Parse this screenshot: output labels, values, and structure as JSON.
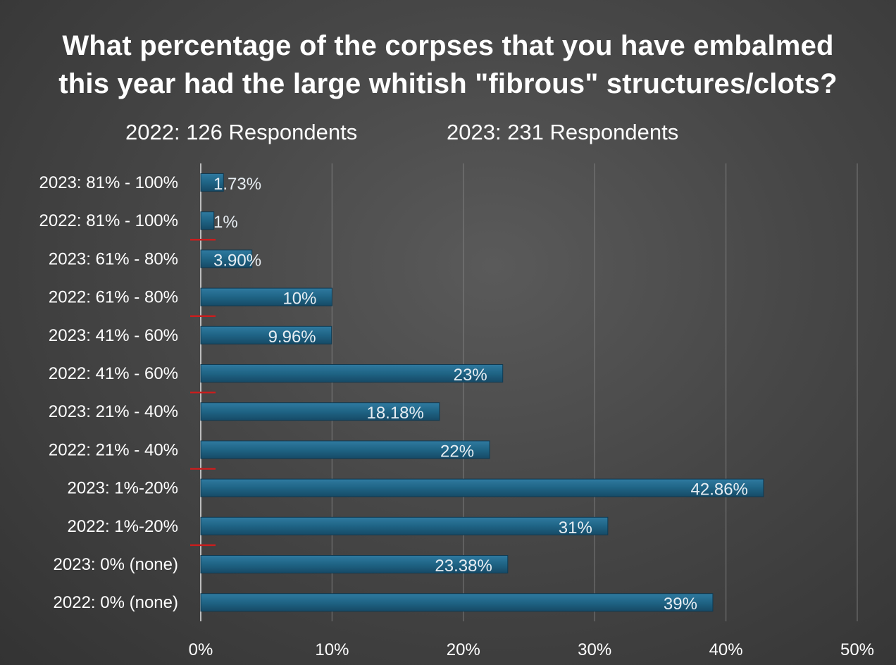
{
  "chart_data": {
    "type": "bar",
    "orientation": "horizontal",
    "title_lines": [
      "What percentage of the corpses that you have embalmed",
      "this year had the large whitish \"fibrous\" structures/clots?"
    ],
    "subtitles": [
      "2022: 126 Respondents",
      "2023: 231 Respondents"
    ],
    "categories": [
      "2023: 81% - 100%",
      "2022: 81% - 100%",
      "2023: 61% - 80%",
      "2022: 61% - 80%",
      "2023: 41% - 60%",
      "2022: 41% - 60%",
      "2023: 21% - 40%",
      "2022: 21% - 40%",
      "2023: 1%-20%",
      "2022: 1%-20%",
      "2023: 0% (none)",
      "2022: 0% (none)"
    ],
    "values": [
      1.73,
      1,
      3.9,
      10,
      9.96,
      23,
      18.18,
      22,
      42.86,
      31,
      23.38,
      39
    ],
    "value_labels": [
      "1.73%",
      "1%",
      "3.90%",
      "10%",
      "9.96%",
      "23%",
      "18.18%",
      "22%",
      "42.86%",
      "31%",
      "23.38%",
      "39%"
    ],
    "x_ticks": [
      "0%",
      "10%",
      "20%",
      "30%",
      "40%",
      "50%"
    ],
    "xlim": [
      0,
      50
    ],
    "grid": true,
    "bar_color": "#1f6485",
    "separator_color": "#c81e1e"
  }
}
